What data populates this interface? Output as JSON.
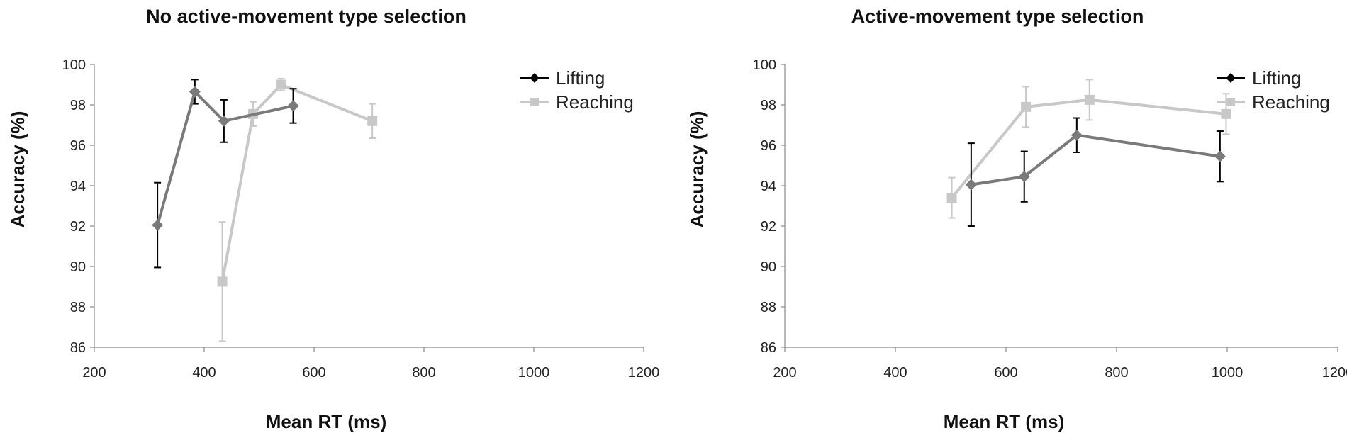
{
  "chart_data": [
    {
      "type": "line",
      "title": "No active-movement type selection",
      "xlabel": "Mean RT (ms)",
      "ylabel": "Accuracy (%)",
      "xlim": [
        200,
        1200
      ],
      "ylim": [
        86,
        100
      ],
      "xticks": [
        200,
        400,
        600,
        800,
        1000,
        1200
      ],
      "yticks": [
        86,
        88,
        90,
        92,
        94,
        96,
        98,
        100
      ],
      "grid": false,
      "legend_position": "top-right",
      "series": [
        {
          "name": "Lifting",
          "marker": "diamond",
          "color": "#7a7a7a",
          "legend_color": "#000000",
          "error_color": "#000000",
          "x": [
            315,
            383,
            436,
            562
          ],
          "y": [
            92.05,
            98.65,
            97.2,
            97.95
          ],
          "error": [
            2.1,
            0.6,
            1.05,
            0.85
          ]
        },
        {
          "name": "Reaching",
          "marker": "square",
          "color": "#c8c8c8",
          "legend_color": "#c8c8c8",
          "error_color": "#c8c8c8",
          "x": [
            433,
            489,
            540,
            706
          ],
          "y": [
            89.25,
            97.55,
            99.0,
            97.2
          ],
          "error": [
            2.95,
            0.6,
            0.3,
            0.85
          ]
        }
      ]
    },
    {
      "type": "line",
      "title": "Active-movement type selection",
      "xlabel": "Mean RT (ms)",
      "ylabel": "Accuracy (%)",
      "xlim": [
        200,
        1200
      ],
      "ylim": [
        86,
        100
      ],
      "xticks": [
        200,
        400,
        600,
        800,
        1000,
        1200
      ],
      "yticks": [
        86,
        88,
        90,
        92,
        94,
        96,
        98,
        100
      ],
      "grid": false,
      "legend_position": "top-right",
      "series": [
        {
          "name": "Lifting",
          "marker": "diamond",
          "color": "#7a7a7a",
          "legend_color": "#000000",
          "error_color": "#000000",
          "x": [
            537,
            633,
            728,
            987
          ],
          "y": [
            94.05,
            94.45,
            96.5,
            95.45
          ],
          "error": [
            2.05,
            1.25,
            0.85,
            1.25
          ]
        },
        {
          "name": "Reaching",
          "marker": "square",
          "color": "#c8c8c8",
          "legend_color": "#c8c8c8",
          "error_color": "#c8c8c8",
          "x": [
            502,
            636,
            751,
            998
          ],
          "y": [
            93.4,
            97.9,
            98.25,
            97.55
          ],
          "error": [
            1.0,
            1.0,
            1.0,
            1.0
          ]
        }
      ]
    }
  ]
}
